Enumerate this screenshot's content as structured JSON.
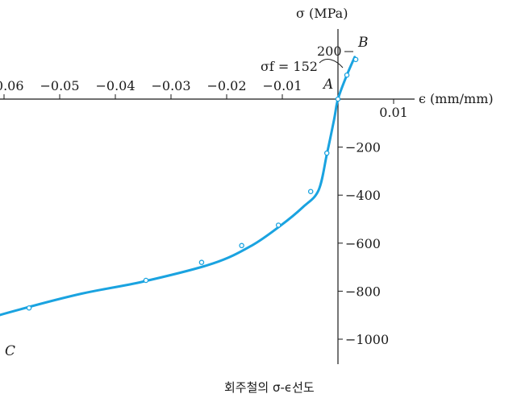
{
  "chart_data": {
    "type": "line",
    "caption": "회주철의 σ-ϵ선도",
    "xlabel": "ϵ (mm/mm)",
    "ylabel": "σ (MPa)",
    "xlim": [
      -0.0685,
      0.0185
    ],
    "ylim": [
      -1090,
      175
    ],
    "x_ticks": [
      -0.06,
      -0.05,
      -0.04,
      -0.03,
      -0.02,
      -0.01,
      0.01
    ],
    "x_tick_labels": [
      "−0.06",
      "−0.05",
      "−0.04",
      "−0.03",
      "−0.02",
      "−0.01",
      "0.01"
    ],
    "y_ticks": [
      -200,
      -400,
      -600,
      -800,
      -1000
    ],
    "y_tick_labels": [
      "−200",
      "−400",
      "−600",
      "−800",
      "−1000"
    ],
    "series": [
      {
        "color": "#1aa3e0",
        "x": [
          -0.0683,
          -0.065,
          -0.057,
          -0.046,
          -0.035,
          -0.0225,
          -0.0155,
          -0.0102,
          -0.0063,
          -0.0035,
          -0.002,
          -0.0007,
          0,
          0.0016,
          0.003
        ],
        "y": [
          -975,
          -930,
          -875,
          -810,
          -760,
          -685,
          -610,
          -525,
          -450,
          -380,
          -230,
          -85,
          0,
          100,
          175
        ],
        "markers_x": [
          -0.0683,
          -0.0635,
          -0.0555,
          -0.0345,
          -0.0245,
          -0.0173,
          -0.0107,
          -0.0049,
          -0.002,
          0,
          0.0016,
          0.0032
        ],
        "markers_y": [
          -968,
          -925,
          -870,
          -755,
          -680,
          -610,
          -525,
          -385,
          -225,
          0,
          100,
          165
        ]
      }
    ],
    "annotations": {
      "A": "A",
      "B": "B",
      "C": "C",
      "y200": "200",
      "sigma_f": "σf = 152"
    }
  }
}
